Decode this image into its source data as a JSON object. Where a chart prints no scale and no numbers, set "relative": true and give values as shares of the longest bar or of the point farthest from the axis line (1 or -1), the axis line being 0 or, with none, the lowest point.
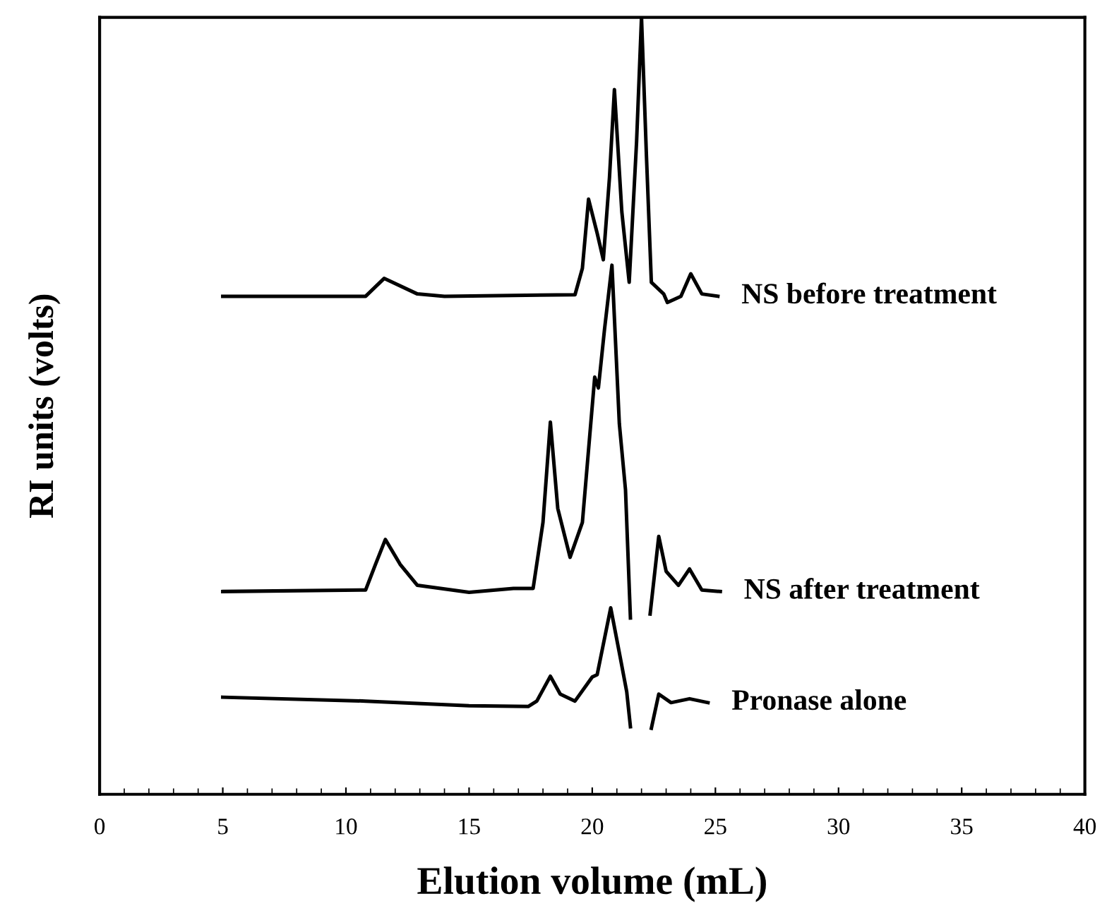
{
  "chart_data": {
    "type": "line",
    "relative": true,
    "xlabel": "Elution volume (mL)",
    "ylabel": "RI units (volts)",
    "xlim": [
      0,
      40
    ],
    "xticks": [
      0,
      5,
      10,
      15,
      20,
      25,
      30,
      35,
      40
    ],
    "tick_labels": "x",
    "grid": false,
    "legend": false,
    "marker": "none",
    "line_style": "solid",
    "series": [
      {
        "name": "NS before treatment",
        "color": "#000000",
        "x": [
          5,
          10.8,
          11.55,
          12.9,
          14,
          19.3,
          19.6,
          19.85,
          20.2,
          20.45,
          20.7,
          20.9,
          21.2,
          21.5,
          21.8,
          22.0,
          22.2,
          22.4,
          22.9,
          23.05,
          23.6,
          24.0,
          24.45,
          25.1
        ],
        "values": [
          0.641,
          0.641,
          0.664,
          0.644,
          0.641,
          0.643,
          0.677,
          0.766,
          0.722,
          0.688,
          0.794,
          0.907,
          0.75,
          0.659,
          0.84,
          1.0,
          0.822,
          0.659,
          0.644,
          0.633,
          0.641,
          0.67,
          0.644,
          0.641
        ]
      },
      {
        "name": "NS after treatment",
        "color": "#000000",
        "x": [
          5,
          10.8,
          11.2,
          11.6,
          12.2,
          12.9,
          15.0,
          16.8,
          17.6,
          18.0,
          18.3,
          18.6,
          19.1,
          19.6,
          20.1,
          20.25,
          20.5,
          20.8,
          21.1,
          21.35,
          21.55,
          21.9,
          22.35,
          22.7,
          23.0,
          23.5,
          23.95,
          24.45,
          25.2
        ],
        "values": [
          0.261,
          0.263,
          0.296,
          0.328,
          0.296,
          0.269,
          0.26,
          0.265,
          0.265,
          0.35,
          0.479,
          0.368,
          0.305,
          0.35,
          0.537,
          0.523,
          0.599,
          0.681,
          0.477,
          0.392,
          0.227,
          null,
          0.232,
          0.332,
          0.287,
          0.269,
          0.29,
          0.263,
          0.261
        ]
      },
      {
        "name": "Pronase alone",
        "color": "#000000",
        "x": [
          5,
          10.8,
          15.0,
          17.4,
          17.75,
          18.3,
          18.7,
          19.3,
          20.0,
          20.2,
          20.75,
          21.15,
          21.4,
          21.55,
          21.9,
          22.4,
          22.7,
          23.2,
          23.95,
          24.7
        ],
        "values": [
          0.125,
          0.12,
          0.114,
          0.113,
          0.12,
          0.152,
          0.129,
          0.12,
          0.151,
          0.154,
          0.24,
          0.174,
          0.132,
          0.087,
          null,
          0.085,
          0.129,
          0.118,
          0.123,
          0.118
        ]
      }
    ]
  }
}
